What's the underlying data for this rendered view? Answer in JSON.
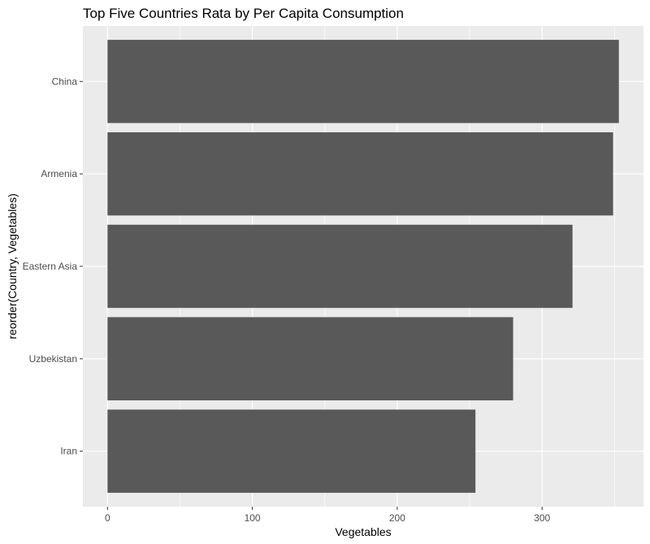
{
  "chart_data": {
    "type": "bar",
    "orientation": "horizontal",
    "title": "Top Five Countries Rata by Per Capita Consumption",
    "xlabel": "Vegetables",
    "ylabel": "reorder(Country, Vegetables)",
    "categories": [
      "Iran",
      "Uzbekistan",
      "Eastern Asia",
      "Armenia",
      "China"
    ],
    "values": [
      254,
      280,
      321,
      349,
      353
    ],
    "xlim": [
      -17,
      370
    ],
    "xticks": [
      0,
      100,
      200,
      300
    ],
    "grid": true,
    "colors": {
      "panel": "#ebebeb",
      "bar": "#595959",
      "grid": "#ffffff",
      "tick": "#333333"
    }
  }
}
